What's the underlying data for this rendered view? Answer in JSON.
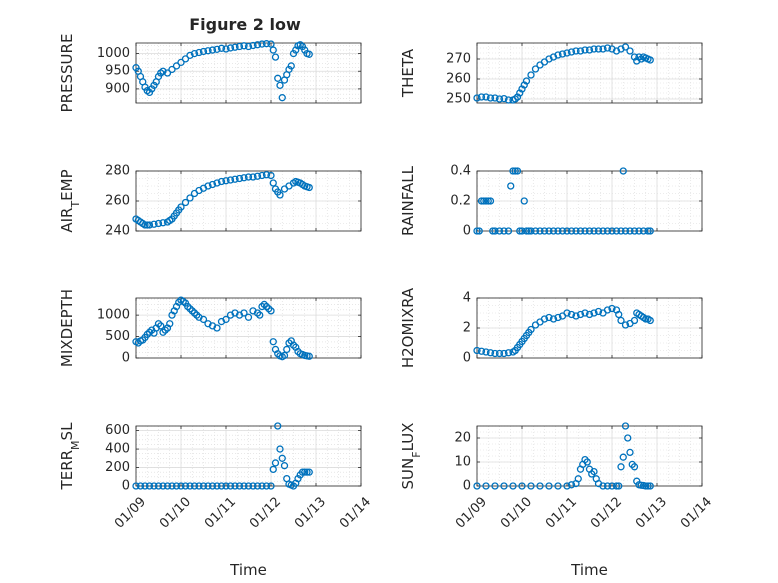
{
  "figure": {
    "title": "Figure 2 low",
    "marker_color": "#0072BD",
    "grid": true,
    "xlabel": "Time",
    "x_tick_labels": [
      "01/09",
      "01/10",
      "01/11",
      "01/12",
      "01/13",
      "01/14"
    ]
  },
  "chart_data": [
    {
      "type": "scatter",
      "ylabel": "PRESSURE",
      "ylabel_parts": [
        {
          "t": "PRESSURE"
        }
      ],
      "xlim": [
        9,
        14
      ],
      "ylim": [
        860,
        1030
      ],
      "yticks": [
        900,
        950,
        1000
      ],
      "x_tick_labels_shown": false,
      "x": [
        9.0,
        9.05,
        9.1,
        9.15,
        9.2,
        9.25,
        9.3,
        9.35,
        9.4,
        9.45,
        9.5,
        9.55,
        9.6,
        9.7,
        9.8,
        9.9,
        10.0,
        10.1,
        10.2,
        10.3,
        10.4,
        10.5,
        10.6,
        10.7,
        10.8,
        10.9,
        11.0,
        11.1,
        11.2,
        11.3,
        11.4,
        11.5,
        11.6,
        11.7,
        11.8,
        11.9,
        12.0,
        12.05,
        12.1,
        12.15,
        12.2,
        12.25,
        12.3,
        12.35,
        12.4,
        12.45,
        12.5,
        12.55,
        12.6,
        12.65,
        12.7,
        12.75,
        12.8,
        12.85
      ],
      "y": [
        960,
        950,
        935,
        920,
        905,
        895,
        890,
        900,
        910,
        920,
        935,
        945,
        950,
        945,
        955,
        965,
        975,
        985,
        995,
        1000,
        1003,
        1006,
        1008,
        1010,
        1012,
        1015,
        1013,
        1016,
        1018,
        1020,
        1022,
        1020,
        1023,
        1025,
        1027,
        1028,
        1027,
        1010,
        990,
        930,
        910,
        875,
        925,
        940,
        955,
        965,
        1000,
        1010,
        1022,
        1025,
        1020,
        1010,
        1000,
        998
      ]
    },
    {
      "type": "scatter",
      "ylabel": "THETA",
      "ylabel_parts": [
        {
          "t": "THETA"
        }
      ],
      "xlim": [
        9,
        14
      ],
      "ylim": [
        248,
        278
      ],
      "yticks": [
        250,
        260,
        270
      ],
      "x_tick_labels_shown": false,
      "x": [
        9.0,
        9.1,
        9.2,
        9.3,
        9.4,
        9.5,
        9.6,
        9.7,
        9.8,
        9.85,
        9.9,
        9.95,
        10.0,
        10.05,
        10.1,
        10.2,
        10.3,
        10.4,
        10.5,
        10.6,
        10.7,
        10.8,
        10.9,
        11.0,
        11.1,
        11.2,
        11.3,
        11.4,
        11.5,
        11.6,
        11.7,
        11.8,
        11.9,
        12.0,
        12.1,
        12.2,
        12.3,
        12.4,
        12.5,
        12.55,
        12.6,
        12.65,
        12.7,
        12.75,
        12.8,
        12.85
      ],
      "y": [
        250.5,
        251,
        251,
        250.5,
        250.5,
        250,
        250.2,
        249.5,
        249.5,
        250,
        251,
        253,
        255,
        257,
        259,
        262,
        265,
        267,
        268.5,
        270,
        271,
        272,
        272.5,
        273,
        273.5,
        274,
        274,
        274.5,
        274.5,
        275,
        275,
        275,
        275.5,
        275,
        274,
        275,
        276,
        274,
        271,
        269,
        271,
        270,
        271,
        270.5,
        270,
        269.5
      ]
    },
    {
      "type": "scatter",
      "ylabel": "AIR_TEMP",
      "ylabel_parts": [
        {
          "t": "AIR"
        },
        {
          "t": "T",
          "sub": true
        },
        {
          "t": "EMP"
        }
      ],
      "xlim": [
        9,
        14
      ],
      "ylim": [
        240,
        280
      ],
      "yticks": [
        240,
        260,
        280
      ],
      "x_tick_labels_shown": false,
      "x": [
        9.0,
        9.05,
        9.1,
        9.15,
        9.2,
        9.25,
        9.3,
        9.4,
        9.5,
        9.6,
        9.7,
        9.75,
        9.8,
        9.85,
        9.9,
        9.95,
        10.0,
        10.1,
        10.2,
        10.3,
        10.4,
        10.5,
        10.6,
        10.7,
        10.8,
        10.9,
        11.0,
        11.1,
        11.2,
        11.3,
        11.4,
        11.5,
        11.6,
        11.7,
        11.8,
        11.9,
        12.0,
        12.05,
        12.1,
        12.15,
        12.2,
        12.3,
        12.4,
        12.5,
        12.55,
        12.6,
        12.65,
        12.7,
        12.75,
        12.8,
        12.85
      ],
      "y": [
        248,
        247,
        246,
        245,
        244,
        244,
        244,
        244.5,
        245,
        245.5,
        246,
        247,
        248,
        250,
        252,
        254,
        256,
        259,
        262,
        265,
        267,
        268.5,
        270,
        271,
        272,
        273,
        273.5,
        274,
        274.5,
        275,
        275.5,
        276,
        276,
        276.5,
        277,
        277.5,
        277,
        272,
        268,
        266,
        264,
        268,
        270,
        272,
        273,
        272.5,
        272,
        271,
        270,
        269.5,
        269
      ]
    },
    {
      "type": "scatter",
      "ylabel": "RAINFALL",
      "ylabel_parts": [
        {
          "t": "RAINFALL"
        }
      ],
      "xlim": [
        9,
        14
      ],
      "ylim": [
        0,
        0.4
      ],
      "yticks": [
        0,
        0.2,
        0.4
      ],
      "x_tick_labels_shown": false,
      "x": [
        9.0,
        9.05,
        9.1,
        9.15,
        9.2,
        9.25,
        9.3,
        9.35,
        9.4,
        9.5,
        9.6,
        9.7,
        9.75,
        9.8,
        9.85,
        9.9,
        9.95,
        10.0,
        10.05,
        10.1,
        10.15,
        10.2,
        10.3,
        10.4,
        10.5,
        10.6,
        10.7,
        10.8,
        10.9,
        11.0,
        11.1,
        11.2,
        11.3,
        11.4,
        11.5,
        11.6,
        11.7,
        11.8,
        11.9,
        12.0,
        12.1,
        12.2,
        12.25,
        12.3,
        12.4,
        12.5,
        12.6,
        12.7,
        12.8,
        12.85
      ],
      "y": [
        0,
        0,
        0.2,
        0.2,
        0.2,
        0.2,
        0.2,
        0,
        0,
        0,
        0,
        0,
        0.3,
        0.4,
        0.4,
        0.4,
        0,
        0,
        0.2,
        0,
        0,
        0,
        0,
        0,
        0,
        0,
        0,
        0,
        0,
        0,
        0,
        0,
        0,
        0,
        0,
        0,
        0,
        0,
        0,
        0,
        0,
        0,
        0.4,
        0,
        0,
        0,
        0,
        0,
        0,
        0
      ]
    },
    {
      "type": "scatter",
      "ylabel": "MIXDEPTH",
      "ylabel_parts": [
        {
          "t": "MIXDEPTH"
        }
      ],
      "xlim": [
        9,
        14
      ],
      "ylim": [
        0,
        1400
      ],
      "yticks": [
        0,
        500,
        1000
      ],
      "x_tick_labels_shown": false,
      "x": [
        9.0,
        9.05,
        9.1,
        9.15,
        9.2,
        9.25,
        9.3,
        9.35,
        9.4,
        9.45,
        9.5,
        9.55,
        9.6,
        9.65,
        9.7,
        9.75,
        9.8,
        9.85,
        9.9,
        9.95,
        10.0,
        10.05,
        10.1,
        10.15,
        10.2,
        10.25,
        10.3,
        10.35,
        10.4,
        10.5,
        10.6,
        10.7,
        10.8,
        10.9,
        11.0,
        11.1,
        11.2,
        11.3,
        11.4,
        11.5,
        11.6,
        11.7,
        11.75,
        11.8,
        11.85,
        11.9,
        11.95,
        12.0,
        12.05,
        12.1,
        12.15,
        12.2,
        12.25,
        12.3,
        12.35,
        12.4,
        12.45,
        12.5,
        12.55,
        12.6,
        12.65,
        12.7,
        12.75,
        12.8,
        12.85
      ],
      "y": [
        380,
        350,
        400,
        420,
        480,
        550,
        600,
        650,
        580,
        700,
        800,
        750,
        600,
        650,
        700,
        800,
        1000,
        1100,
        1200,
        1300,
        1350,
        1320,
        1280,
        1200,
        1150,
        1100,
        1050,
        1000,
        950,
        900,
        800,
        750,
        700,
        850,
        900,
        1000,
        1050,
        1000,
        1050,
        950,
        1100,
        1050,
        1000,
        1200,
        1250,
        1200,
        1150,
        1100,
        380,
        200,
        100,
        50,
        30,
        60,
        200,
        350,
        400,
        300,
        250,
        150,
        100,
        80,
        60,
        50,
        40
      ]
    },
    {
      "type": "scatter",
      "ylabel": "H2OMIXRA",
      "ylabel_parts": [
        {
          "t": "H2OMIXRA"
        }
      ],
      "xlim": [
        9,
        14
      ],
      "ylim": [
        0,
        4
      ],
      "yticks": [
        0,
        2,
        4
      ],
      "x_tick_labels_shown": false,
      "x": [
        9.0,
        9.1,
        9.2,
        9.3,
        9.4,
        9.5,
        9.6,
        9.7,
        9.8,
        9.85,
        9.9,
        9.95,
        10.0,
        10.05,
        10.1,
        10.15,
        10.2,
        10.3,
        10.4,
        10.5,
        10.6,
        10.7,
        10.8,
        10.9,
        11.0,
        11.1,
        11.2,
        11.3,
        11.4,
        11.5,
        11.6,
        11.7,
        11.8,
        11.9,
        12.0,
        12.1,
        12.15,
        12.2,
        12.3,
        12.4,
        12.5,
        12.55,
        12.6,
        12.65,
        12.7,
        12.75,
        12.8,
        12.85
      ],
      "y": [
        0.5,
        0.45,
        0.4,
        0.35,
        0.3,
        0.3,
        0.3,
        0.35,
        0.4,
        0.5,
        0.7,
        0.9,
        1.1,
        1.3,
        1.5,
        1.7,
        1.9,
        2.2,
        2.4,
        2.6,
        2.7,
        2.6,
        2.7,
        2.8,
        3.0,
        2.9,
        2.8,
        2.9,
        3.0,
        2.9,
        3.0,
        3.1,
        3.0,
        3.2,
        3.3,
        3.2,
        2.9,
        2.5,
        2.2,
        2.3,
        2.5,
        3.0,
        2.9,
        2.8,
        2.7,
        2.6,
        2.6,
        2.5
      ]
    },
    {
      "type": "scatter",
      "ylabel": "TERR_MSL",
      "ylabel_parts": [
        {
          "t": "TERR"
        },
        {
          "t": "M",
          "sub": true
        },
        {
          "t": "SL"
        }
      ],
      "xlim": [
        9,
        14
      ],
      "ylim": [
        0,
        650
      ],
      "yticks": [
        0,
        200,
        400,
        600
      ],
      "x_tick_labels_shown": true,
      "x": [
        9.0,
        9.1,
        9.2,
        9.3,
        9.4,
        9.5,
        9.6,
        9.7,
        9.8,
        9.9,
        10.0,
        10.1,
        10.2,
        10.3,
        10.4,
        10.5,
        10.6,
        10.7,
        10.8,
        10.9,
        11.0,
        11.1,
        11.2,
        11.3,
        11.4,
        11.5,
        11.6,
        11.7,
        11.8,
        11.9,
        12.0,
        12.05,
        12.1,
        12.15,
        12.2,
        12.25,
        12.3,
        12.35,
        12.4,
        12.45,
        12.5,
        12.55,
        12.6,
        12.65,
        12.7,
        12.75,
        12.8,
        12.85
      ],
      "y": [
        0,
        0,
        0,
        0,
        0,
        0,
        0,
        0,
        0,
        0,
        0,
        0,
        0,
        0,
        0,
        0,
        0,
        0,
        0,
        0,
        0,
        0,
        0,
        0,
        0,
        0,
        0,
        0,
        0,
        0,
        0,
        180,
        250,
        650,
        400,
        300,
        220,
        80,
        20,
        10,
        0,
        30,
        80,
        120,
        150,
        150,
        150,
        150
      ]
    },
    {
      "type": "scatter",
      "ylabel": "SUN_FLUX",
      "ylabel_parts": [
        {
          "t": "SUN"
        },
        {
          "t": "F",
          "sub": true
        },
        {
          "t": "LUX"
        }
      ],
      "xlim": [
        9,
        14
      ],
      "ylim": [
        0,
        25
      ],
      "yticks": [
        0,
        10,
        20
      ],
      "x_tick_labels_shown": true,
      "x": [
        9.0,
        9.2,
        9.4,
        9.6,
        9.8,
        10.0,
        10.2,
        10.4,
        10.6,
        10.8,
        11.0,
        11.1,
        11.2,
        11.25,
        11.3,
        11.35,
        11.4,
        11.45,
        11.5,
        11.55,
        11.6,
        11.65,
        11.7,
        11.8,
        11.9,
        12.0,
        12.1,
        12.15,
        12.2,
        12.25,
        12.3,
        12.35,
        12.4,
        12.45,
        12.5,
        12.55,
        12.6,
        12.65,
        12.7,
        12.75,
        12.8,
        12.85
      ],
      "y": [
        0,
        0,
        0,
        0,
        0,
        0,
        0,
        0,
        0,
        0,
        0,
        0.5,
        1,
        3,
        7,
        9,
        11,
        10,
        7,
        5,
        6,
        3,
        1,
        0,
        0,
        0,
        0,
        0,
        8,
        12,
        25,
        20,
        14,
        9,
        8,
        2,
        0.5,
        0.3,
        0.2,
        0,
        0,
        0
      ]
    }
  ]
}
